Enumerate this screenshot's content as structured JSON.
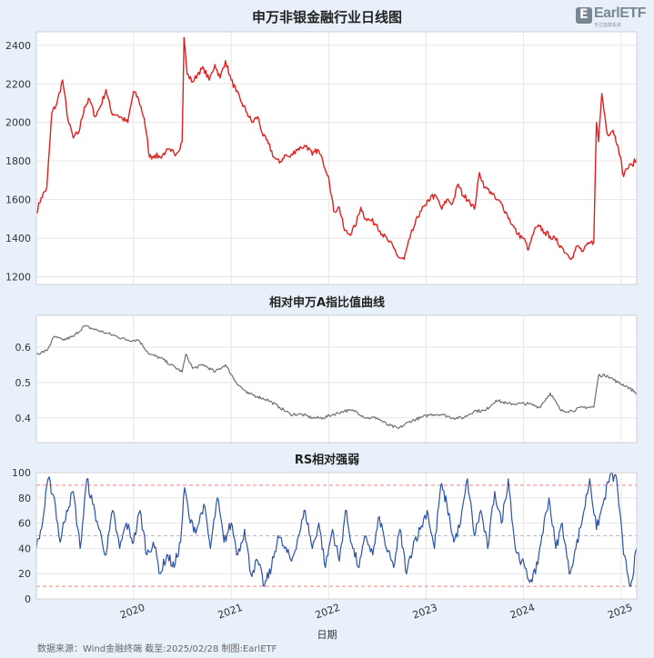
{
  "chart_data": [
    {
      "type": "line",
      "title": "申万非银金融行业日线图",
      "ylim": [
        1160,
        2470
      ],
      "yticks": [
        1200,
        1400,
        1600,
        1800,
        2000,
        2200,
        2400
      ],
      "color": "#e02020",
      "x": [
        "2019-01-02",
        "2019-01-20",
        "2019-02-10",
        "2019-03-01",
        "2019-03-20",
        "2019-04-10",
        "2019-05-01",
        "2019-05-20",
        "2019-06-10",
        "2019-07-01",
        "2019-07-20",
        "2019-08-10",
        "2019-09-01",
        "2019-09-20",
        "2019-10-10",
        "2019-11-01",
        "2019-11-20",
        "2019-12-10",
        "2020-01-01",
        "2020-01-20",
        "2020-02-10",
        "2020-03-01",
        "2020-03-20",
        "2020-04-10",
        "2020-05-01",
        "2020-05-20",
        "2020-06-10",
        "2020-07-01",
        "2020-07-08",
        "2020-07-20",
        "2020-08-10",
        "2020-09-01",
        "2020-09-20",
        "2020-10-10",
        "2020-11-01",
        "2020-11-20",
        "2020-12-10",
        "2021-01-01",
        "2021-01-20",
        "2021-02-10",
        "2021-03-01",
        "2021-03-20",
        "2021-04-10",
        "2021-05-01",
        "2021-05-20",
        "2021-06-10",
        "2021-07-01",
        "2021-07-20",
        "2021-08-10",
        "2021-09-01",
        "2021-09-20",
        "2021-10-10",
        "2021-11-01",
        "2021-11-20",
        "2021-12-10",
        "2022-01-01",
        "2022-01-20",
        "2022-02-10",
        "2022-03-01",
        "2022-03-20",
        "2022-04-10",
        "2022-05-01",
        "2022-05-20",
        "2022-06-10",
        "2022-07-01",
        "2022-07-20",
        "2022-08-10",
        "2022-09-01",
        "2022-09-20",
        "2022-10-10",
        "2022-11-01",
        "2022-11-20",
        "2022-12-10",
        "2023-01-01",
        "2023-01-20",
        "2023-02-10",
        "2023-03-01",
        "2023-03-20",
        "2023-04-10",
        "2023-05-01",
        "2023-05-20",
        "2023-06-10",
        "2023-07-01",
        "2023-07-20",
        "2023-08-10",
        "2023-09-01",
        "2023-09-20",
        "2023-10-10",
        "2023-11-01",
        "2023-11-20",
        "2023-12-10",
        "2024-01-01",
        "2024-01-20",
        "2024-02-10",
        "2024-03-01",
        "2024-03-20",
        "2024-04-10",
        "2024-05-01",
        "2024-05-20",
        "2024-06-10",
        "2024-07-01",
        "2024-07-20",
        "2024-08-10",
        "2024-09-01",
        "2024-09-20",
        "2024-09-30",
        "2024-10-08",
        "2024-10-20",
        "2024-11-10",
        "2024-12-01",
        "2024-12-20",
        "2025-01-10",
        "2025-01-20",
        "2025-02-10",
        "2025-02-28"
      ],
      "values": [
        1530,
        1610,
        1660,
        2050,
        2100,
        2220,
        2010,
        1920,
        1950,
        2080,
        2120,
        2030,
        2090,
        2170,
        2050,
        2040,
        2020,
        2000,
        2160,
        2120,
        2020,
        1820,
        1830,
        1820,
        1850,
        1850,
        1840,
        1900,
        2440,
        2250,
        2210,
        2260,
        2280,
        2220,
        2300,
        2230,
        2320,
        2220,
        2160,
        2100,
        2050,
        2000,
        2030,
        1930,
        1890,
        1820,
        1790,
        1830,
        1820,
        1860,
        1870,
        1880,
        1830,
        1860,
        1800,
        1720,
        1540,
        1560,
        1440,
        1420,
        1460,
        1560,
        1500,
        1490,
        1470,
        1420,
        1390,
        1350,
        1300,
        1290,
        1400,
        1470,
        1540,
        1570,
        1620,
        1610,
        1550,
        1600,
        1580,
        1680,
        1620,
        1600,
        1550,
        1740,
        1660,
        1640,
        1600,
        1580,
        1520,
        1470,
        1420,
        1400,
        1340,
        1440,
        1460,
        1430,
        1410,
        1390,
        1360,
        1320,
        1300,
        1360,
        1330,
        1370,
        1380,
        2000,
        1900,
        2150,
        1940,
        1960,
        1880,
        1720,
        1760,
        1780,
        1810
      ]
    },
    {
      "type": "line",
      "title": "相对申万A指比值曲线",
      "ylim": [
        0.33,
        0.69
      ],
      "yticks": [
        0.4,
        0.5,
        0.6
      ],
      "color": "#6f6f6f",
      "x": [
        "2019-01-02",
        "2019-02-10",
        "2019-03-10",
        "2019-04-10",
        "2019-05-20",
        "2019-07-01",
        "2019-08-10",
        "2019-09-20",
        "2019-11-01",
        "2019-12-10",
        "2020-01-20",
        "2020-03-01",
        "2020-04-10",
        "2020-05-20",
        "2020-07-01",
        "2020-07-15",
        "2020-08-10",
        "2020-09-20",
        "2020-11-01",
        "2020-12-10",
        "2021-01-20",
        "2021-03-01",
        "2021-04-10",
        "2021-05-20",
        "2021-07-01",
        "2021-08-10",
        "2021-09-20",
        "2021-11-01",
        "2021-12-10",
        "2022-01-20",
        "2022-03-01",
        "2022-04-10",
        "2022-05-20",
        "2022-07-01",
        "2022-08-10",
        "2022-09-20",
        "2022-11-01",
        "2022-12-10",
        "2023-01-20",
        "2023-03-01",
        "2023-04-10",
        "2023-05-20",
        "2023-07-01",
        "2023-08-10",
        "2023-09-20",
        "2023-11-01",
        "2023-12-10",
        "2024-01-20",
        "2024-03-01",
        "2024-04-10",
        "2024-05-20",
        "2024-07-01",
        "2024-08-10",
        "2024-09-20",
        "2024-10-08",
        "2024-11-10",
        "2024-12-20",
        "2025-01-20",
        "2025-02-28"
      ],
      "values": [
        0.58,
        0.59,
        0.63,
        0.62,
        0.63,
        0.66,
        0.65,
        0.64,
        0.63,
        0.62,
        0.62,
        0.58,
        0.57,
        0.55,
        0.53,
        0.58,
        0.54,
        0.55,
        0.53,
        0.55,
        0.5,
        0.47,
        0.46,
        0.45,
        0.43,
        0.41,
        0.41,
        0.4,
        0.4,
        0.41,
        0.42,
        0.42,
        0.4,
        0.4,
        0.38,
        0.37,
        0.39,
        0.4,
        0.41,
        0.41,
        0.4,
        0.4,
        0.42,
        0.42,
        0.45,
        0.44,
        0.44,
        0.44,
        0.43,
        0.47,
        0.42,
        0.42,
        0.43,
        0.43,
        0.52,
        0.52,
        0.5,
        0.49,
        0.47
      ]
    },
    {
      "type": "line",
      "title": "RS相对强弱",
      "ylim": [
        0,
        100
      ],
      "yticks": [
        0,
        20,
        40,
        60,
        80,
        100
      ],
      "color": "#2a52a8",
      "reference_lines": [
        10,
        50,
        90
      ],
      "x": [
        "2019-01-02",
        "2019-01-25",
        "2019-02-15",
        "2019-03-10",
        "2019-04-01",
        "2019-04-25",
        "2019-05-20",
        "2019-06-15",
        "2019-07-10",
        "2019-08-01",
        "2019-08-25",
        "2019-09-20",
        "2019-10-15",
        "2019-11-10",
        "2019-12-05",
        "2020-01-01",
        "2020-01-25",
        "2020-02-20",
        "2020-03-15",
        "2020-04-10",
        "2020-05-05",
        "2020-06-01",
        "2020-06-25",
        "2020-07-10",
        "2020-08-01",
        "2020-08-25",
        "2020-09-20",
        "2020-10-15",
        "2020-11-10",
        "2020-12-05",
        "2021-01-01",
        "2021-01-25",
        "2021-02-20",
        "2021-03-15",
        "2021-04-10",
        "2021-05-05",
        "2021-06-01",
        "2021-06-25",
        "2021-07-20",
        "2021-08-15",
        "2021-09-10",
        "2021-10-05",
        "2021-11-01",
        "2021-11-25",
        "2021-12-20",
        "2022-01-15",
        "2022-02-10",
        "2022-03-05",
        "2022-04-01",
        "2022-04-25",
        "2022-05-20",
        "2022-06-15",
        "2022-07-10",
        "2022-08-05",
        "2022-09-01",
        "2022-09-25",
        "2022-10-20",
        "2022-11-15",
        "2022-12-10",
        "2023-01-05",
        "2023-02-01",
        "2023-02-25",
        "2023-03-20",
        "2023-04-15",
        "2023-05-10",
        "2023-06-05",
        "2023-07-01",
        "2023-07-25",
        "2023-08-20",
        "2023-09-15",
        "2023-10-10",
        "2023-11-05",
        "2023-12-01",
        "2023-12-25",
        "2024-01-20",
        "2024-02-15",
        "2024-03-10",
        "2024-04-05",
        "2024-05-01",
        "2024-05-25",
        "2024-06-20",
        "2024-07-15",
        "2024-08-10",
        "2024-09-05",
        "2024-09-30",
        "2024-10-25",
        "2024-11-20",
        "2024-12-15",
        "2025-01-10",
        "2025-02-05",
        "2025-02-28"
      ],
      "values": [
        40,
        60,
        95,
        80,
        45,
        70,
        85,
        40,
        95,
        75,
        55,
        35,
        70,
        40,
        60,
        45,
        70,
        35,
        45,
        20,
        35,
        25,
        45,
        88,
        60,
        55,
        75,
        40,
        80,
        45,
        60,
        35,
        55,
        20,
        30,
        10,
        25,
        50,
        40,
        30,
        50,
        70,
        40,
        60,
        25,
        55,
        30,
        70,
        40,
        25,
        50,
        35,
        65,
        40,
        25,
        55,
        20,
        45,
        55,
        70,
        40,
        90,
        75,
        45,
        60,
        95,
        50,
        70,
        40,
        85,
        60,
        95,
        40,
        30,
        15,
        20,
        50,
        80,
        40,
        60,
        20,
        40,
        65,
        95,
        55,
        75,
        98,
        95,
        35,
        10,
        40
      ]
    }
  ],
  "x_axis": {
    "ticks": [
      "2020",
      "2021",
      "2022",
      "2023",
      "2024",
      "2025"
    ],
    "tick_dates": [
      "2020-01-01",
      "2021-01-01",
      "2022-01-01",
      "2023-01-01",
      "2024-01-01",
      "2025-01-01"
    ],
    "range": [
      "2019-01-02",
      "2025-02-28"
    ],
    "label": "日期"
  },
  "footer": "数据来源：Wind金融终端 截至:2025/02/28 制图:EarlETF",
  "logo": {
    "text": "EarlETF",
    "sub": "专注指数投资"
  },
  "colors": {
    "background": "#e8f1fa",
    "plot_bg": "#ffffff",
    "grid": "#e6e6e6",
    "ref_line": "#f08080",
    "mid_ref_line": "#bbbbbb"
  },
  "grid": true
}
